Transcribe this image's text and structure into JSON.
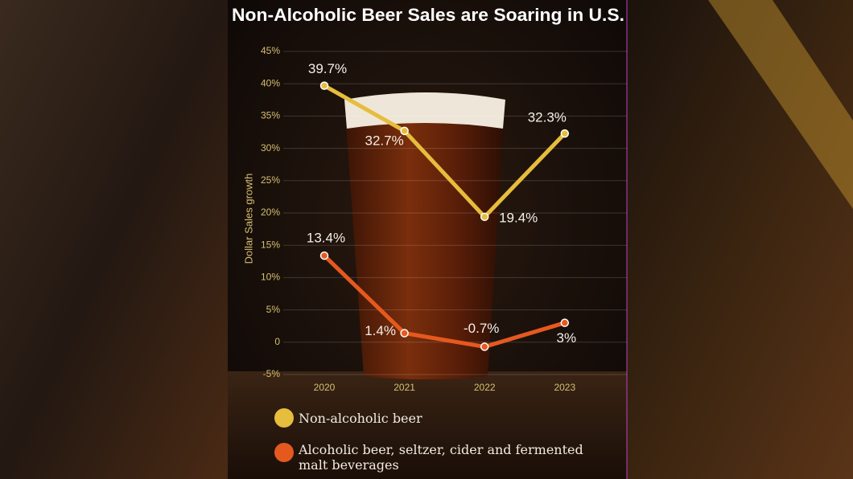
{
  "chart_data": {
    "type": "line",
    "title": "Non-Alcoholic Beer Sales are Soaring in U.S.",
    "y_label": "Dollar Sales growth",
    "categories": [
      "2020",
      "2021",
      "2022",
      "2023"
    ],
    "series": [
      {
        "name": "Non-alcoholic beer",
        "color": "#e6bd3c",
        "values": [
          39.7,
          32.7,
          19.4,
          32.3
        ],
        "value_labels": [
          "39.7%",
          "32.7%",
          "19.4%",
          "32.3%"
        ]
      },
      {
        "name": "Alcoholic beer, seltzer, cider and fermented malt beverages",
        "color": "#e5591f",
        "values": [
          13.4,
          1.4,
          -0.7,
          3
        ],
        "value_labels": [
          "13.4%",
          "1.4%",
          "-0.7%",
          "3%"
        ]
      }
    ],
    "ylim": [
      -5,
      45
    ],
    "yticks": [
      {
        "value": -5,
        "label": "-5%"
      },
      0,
      {
        "value": 5,
        "label": "5%"
      },
      {
        "value": 10,
        "label": "10%"
      },
      {
        "value": 15,
        "label": "15%"
      },
      {
        "value": 20,
        "label": "20%"
      },
      {
        "value": 25,
        "label": "25%"
      },
      {
        "value": 30,
        "label": "30%"
      },
      {
        "value": 35,
        "label": "35%"
      },
      {
        "value": 40,
        "label": "40%"
      },
      {
        "value": 45,
        "label": "45%"
      }
    ],
    "grid": true
  }
}
